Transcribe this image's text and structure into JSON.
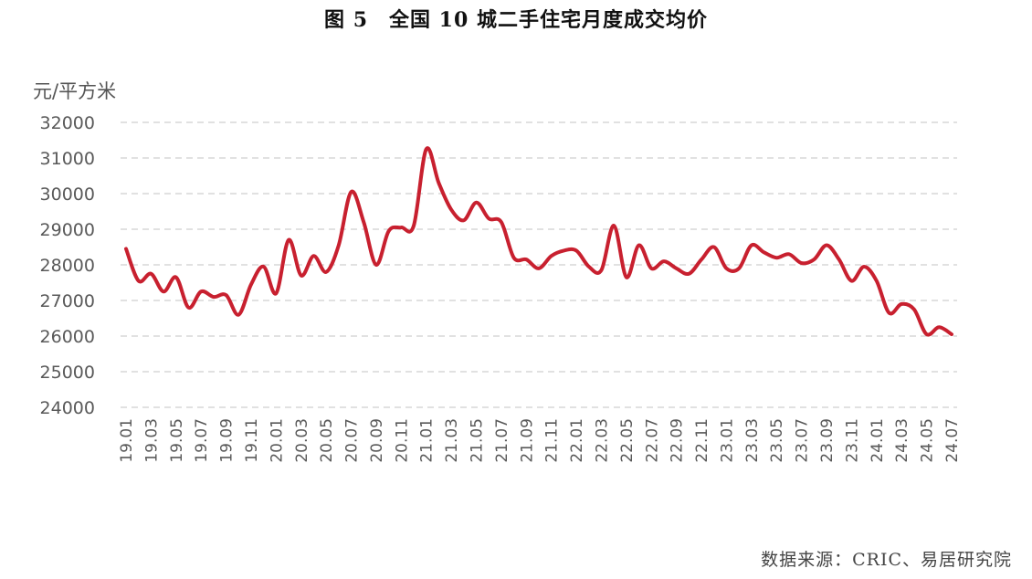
{
  "chart_data": {
    "type": "line",
    "title": "图 5　全国 10 城二手住宅月度成交均价",
    "ylabel": "元/平方米",
    "xlabel": "",
    "ylim": [
      24000,
      32000
    ],
    "yticks": [
      32000,
      31000,
      30000,
      29000,
      28000,
      27000,
      26000,
      25000,
      24000
    ],
    "grid": true,
    "legend": "none",
    "color": "#C8202F",
    "x": [
      "19.01",
      "19.02",
      "19.03",
      "19.04",
      "19.05",
      "19.06",
      "19.07",
      "19.08",
      "19.09",
      "19.10",
      "19.11",
      "19.12",
      "20.01",
      "20.02",
      "20.03",
      "20.04",
      "20.05",
      "20.06",
      "20.07",
      "20.08",
      "20.09",
      "20.10",
      "20.11",
      "20.12",
      "21.01",
      "21.02",
      "21.03",
      "21.04",
      "21.05",
      "21.06",
      "21.07",
      "21.08",
      "21.09",
      "21.10",
      "21.11",
      "21.12",
      "22.01",
      "22.02",
      "22.03",
      "22.04",
      "22.05",
      "22.06",
      "22.07",
      "22.08",
      "22.09",
      "22.10",
      "22.11",
      "22.12",
      "23.01",
      "23.02",
      "23.03",
      "23.04",
      "23.05",
      "23.06",
      "23.07",
      "23.08",
      "23.09",
      "23.10",
      "23.11",
      "23.12",
      "24.01",
      "24.02",
      "24.03",
      "24.04",
      "24.05",
      "24.06",
      "24.07"
    ],
    "xtick_labels": [
      "19.01",
      "19.03",
      "19.05",
      "19.07",
      "19.09",
      "19.11",
      "20.01",
      "20.03",
      "20.05",
      "20.07",
      "20.09",
      "20.11",
      "21.01",
      "21.03",
      "21.05",
      "21.07",
      "21.09",
      "21.11",
      "22.01",
      "22.03",
      "22.05",
      "22.07",
      "22.09",
      "22.11",
      "23.01",
      "23.03",
      "23.05",
      "23.07",
      "23.09",
      "23.11",
      "24.01",
      "24.03",
      "24.05",
      "24.07"
    ],
    "series": [
      {
        "name": "全国10城二手住宅月度成交均价",
        "values": [
          28450,
          27550,
          27750,
          27250,
          27650,
          26800,
          27250,
          27100,
          27150,
          26600,
          27450,
          27950,
          27200,
          28700,
          27700,
          28250,
          27800,
          28550,
          30050,
          29200,
          28000,
          28950,
          29050,
          29100,
          31250,
          30300,
          29550,
          29250,
          29750,
          29300,
          29200,
          28200,
          28150,
          27900,
          28250,
          28400,
          28400,
          27950,
          27850,
          29100,
          27650,
          28550,
          27900,
          28100,
          27900,
          27750,
          28150,
          28500,
          27900,
          27900,
          28550,
          28350,
          28200,
          28300,
          28050,
          28150,
          28550,
          28150,
          27550,
          27950,
          27550,
          26650,
          26900,
          26750,
          26050,
          26250,
          26050
        ]
      }
    ]
  },
  "source": "数据来源：CRIC、易居研究院"
}
